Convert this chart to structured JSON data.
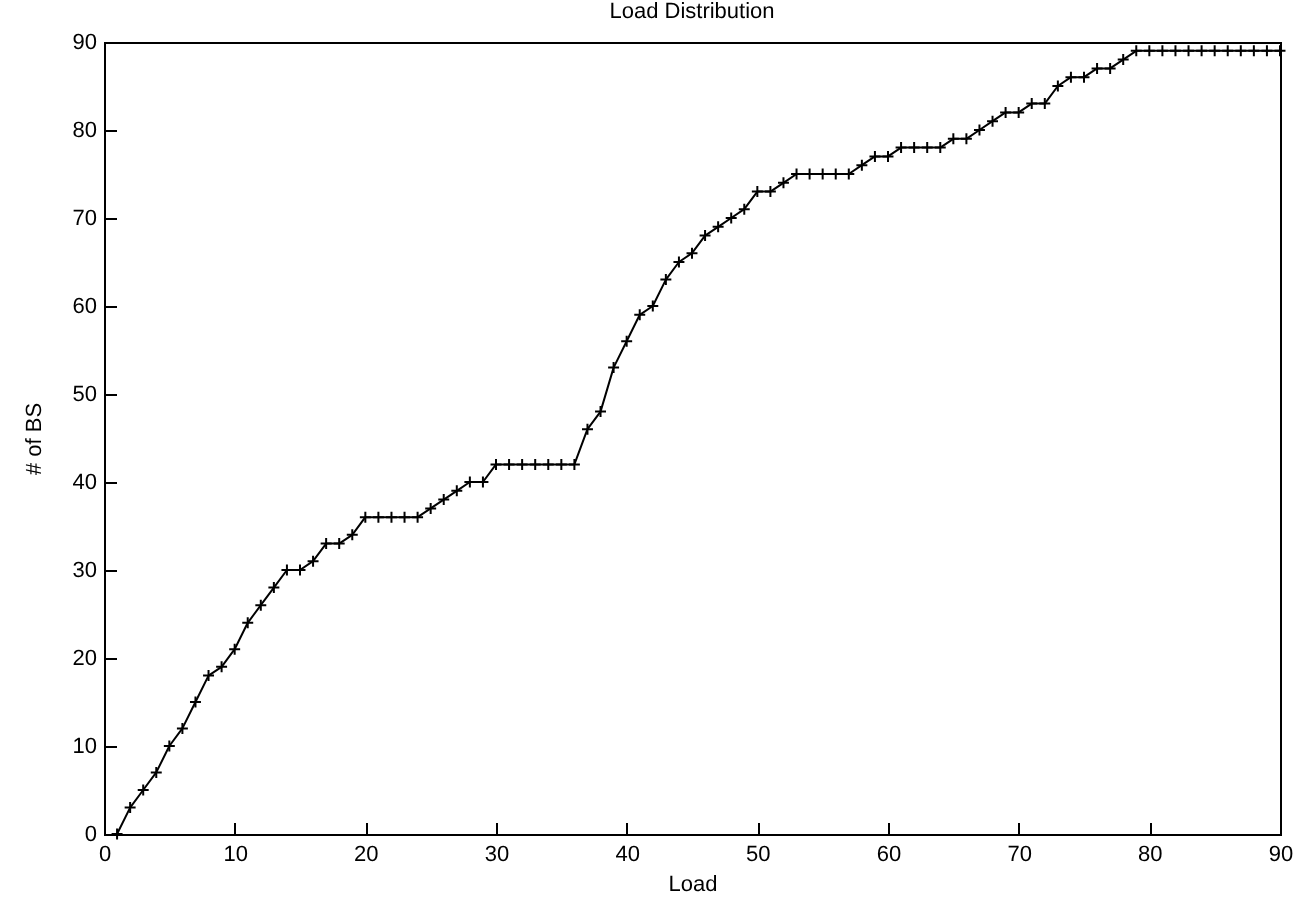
{
  "chart_data": {
    "type": "line",
    "title": "Load Distribution",
    "xlabel": "Load",
    "ylabel": "# of BS",
    "x": [
      1,
      2,
      3,
      4,
      5,
      6,
      7,
      8,
      9,
      10,
      11,
      12,
      13,
      14,
      15,
      16,
      17,
      18,
      19,
      20,
      21,
      22,
      23,
      24,
      25,
      26,
      27,
      28,
      29,
      30,
      31,
      32,
      33,
      34,
      35,
      36,
      37,
      38,
      39,
      40,
      41,
      42,
      43,
      44,
      45,
      46,
      47,
      48,
      49,
      50,
      51,
      52,
      53,
      54,
      55,
      56,
      57,
      58,
      59,
      60,
      61,
      62,
      63,
      64,
      65,
      66,
      67,
      68,
      69,
      70,
      71,
      72,
      73,
      74,
      75,
      76,
      77,
      78,
      79,
      80,
      81,
      82,
      83,
      84,
      85,
      86,
      87,
      88,
      89,
      90
    ],
    "series": [
      {
        "color": "#000000",
        "values": [
          0,
          3,
          5,
          7,
          10,
          12,
          15,
          18,
          19,
          21,
          24,
          26,
          28,
          30,
          30,
          31,
          33,
          33,
          34,
          36,
          36,
          36,
          36,
          36,
          37,
          38,
          39,
          40,
          40,
          42,
          42,
          42,
          42,
          42,
          42,
          42,
          46,
          48,
          53,
          56,
          59,
          60,
          63,
          65,
          66,
          68,
          69,
          70,
          71,
          73,
          73,
          74,
          75,
          75,
          75,
          75,
          75,
          76,
          77,
          77,
          78,
          78,
          78,
          78,
          79,
          79,
          80,
          81,
          82,
          82,
          83,
          83,
          85,
          86,
          86,
          87,
          87,
          88,
          89,
          89,
          89,
          89,
          89,
          89,
          89,
          89,
          89,
          89,
          89,
          89
        ]
      }
    ],
    "xlim": [
      0,
      90
    ],
    "ylim": [
      0,
      90
    ],
    "xticks": [
      0,
      10,
      20,
      30,
      40,
      50,
      60,
      70,
      80,
      90
    ],
    "yticks": [
      0,
      10,
      20,
      30,
      40,
      50,
      60,
      70,
      80,
      90
    ],
    "marker": "cross",
    "line_style": "solid",
    "grid": false
  }
}
